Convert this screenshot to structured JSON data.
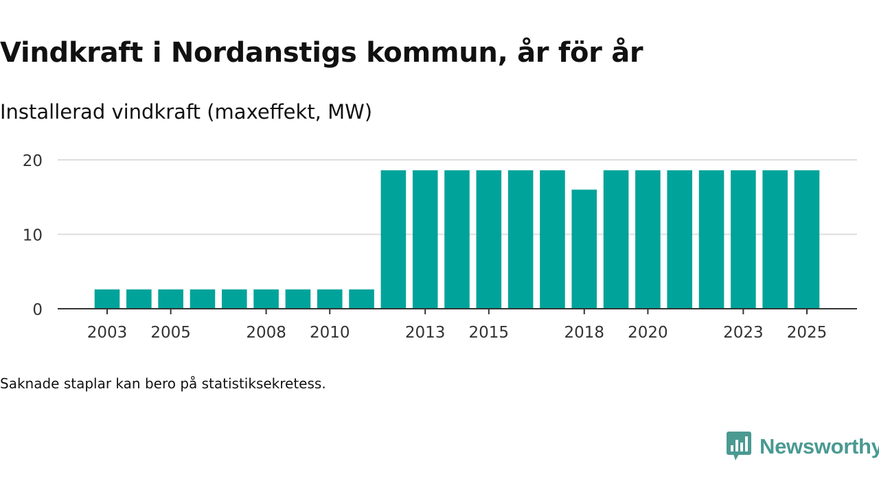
{
  "chart_data": {
    "type": "bar",
    "title": "Vindkraft i Nordanstigs kommun, år för år",
    "subtitle": "Installerad vindkraft (maxeffekt, MW)",
    "xlabel": "",
    "ylabel": "",
    "ylim": [
      0,
      20
    ],
    "y_ticks": [
      0,
      10,
      20
    ],
    "grid": true,
    "x_tick_labels": [
      "2003",
      "2005",
      "2008",
      "2010",
      "2013",
      "2015",
      "2018",
      "2020",
      "2023",
      "2025"
    ],
    "categories": [
      "2003",
      "2004",
      "2005",
      "2006",
      "2007",
      "2008",
      "2009",
      "2010",
      "2011",
      "2012",
      "2013",
      "2014",
      "2015",
      "2016",
      "2017",
      "2018",
      "2019",
      "2020",
      "2021",
      "2022",
      "2023",
      "2024",
      "2025"
    ],
    "values": [
      2.6,
      2.6,
      2.6,
      2.6,
      2.6,
      2.6,
      2.6,
      2.6,
      2.6,
      18.6,
      18.6,
      18.6,
      18.6,
      18.6,
      18.6,
      16.0,
      18.6,
      18.6,
      18.6,
      18.6,
      18.6,
      18.6,
      18.6
    ],
    "bar_color": "#00a39a"
  },
  "footer": {
    "note": "Saknade staplar kan bero på statistiksekretess."
  },
  "brand": {
    "name": "Newsworthy",
    "icon": "newsworthy-logo-icon",
    "color": "#4a9a92"
  }
}
